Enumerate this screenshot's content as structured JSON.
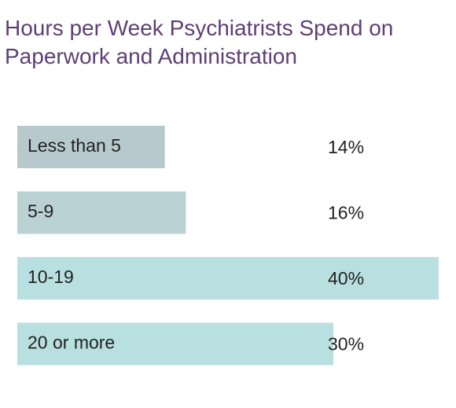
{
  "chart_data": {
    "type": "bar",
    "orientation": "horizontal",
    "title": "Hours per Week Psychiatrists Spend on Paperwork and Administration",
    "categories": [
      "Less than 5",
      "5-9",
      "10-19",
      "20 or more"
    ],
    "values": [
      14,
      16,
      40,
      30
    ],
    "value_labels": [
      "14%",
      "16%",
      "40%",
      "30%"
    ],
    "colors": [
      "#b7c9cd",
      "#bad2d4",
      "#b9e0e0",
      "#b9e0e0"
    ],
    "xlim": [
      0,
      40
    ]
  }
}
